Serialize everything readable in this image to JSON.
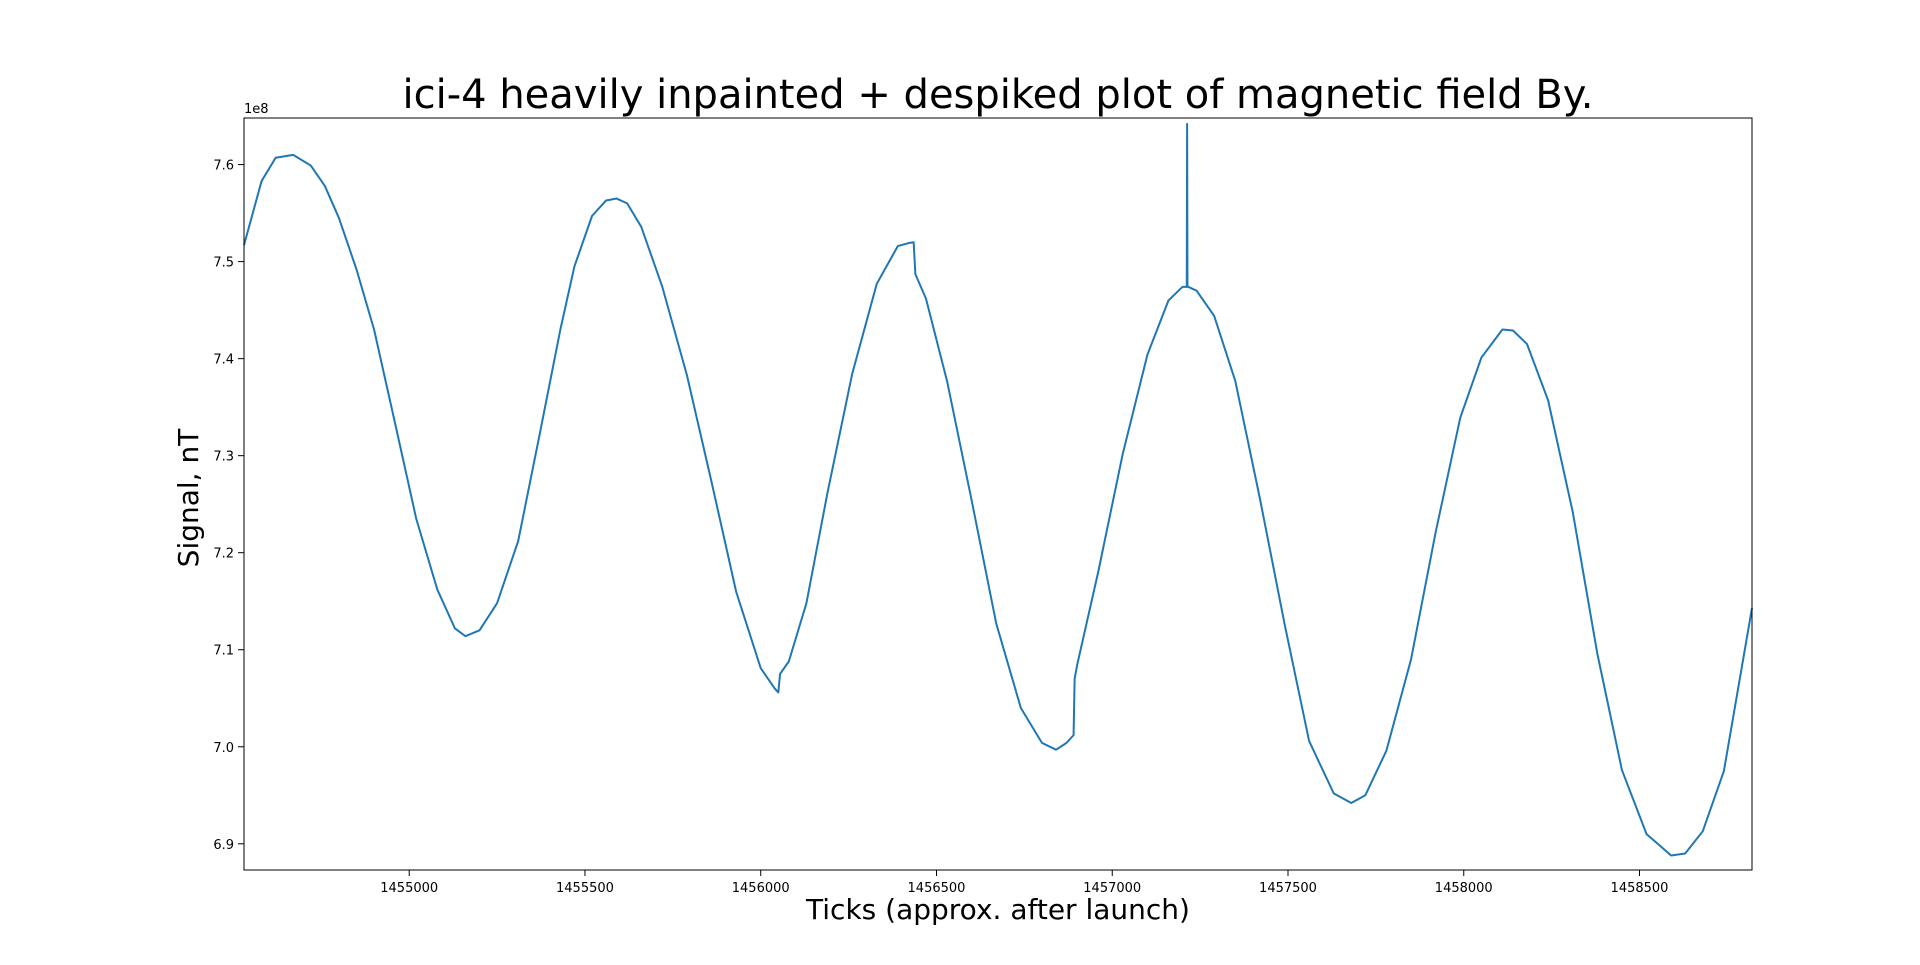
{
  "chart_data": {
    "type": "line",
    "title": "ici-4 heavily inpainted + despiked plot of magnetic field By.",
    "xlabel": "Ticks (approx. after launch)",
    "ylabel": "Signal, nT",
    "y_offset_label": "1e8",
    "xlim": [
      1454530,
      1458820
    ],
    "ylim": [
      6.873,
      7.648
    ],
    "x_ticks": [
      1455000,
      1455500,
      1456000,
      1456500,
      1457000,
      1457500,
      1458000,
      1458500
    ],
    "x_tick_labels": [
      "1455000",
      "1455500",
      "1456000",
      "1456500",
      "1457000",
      "1457500",
      "1458000",
      "1458500"
    ],
    "y_ticks": [
      6.9,
      7.0,
      7.1,
      7.2,
      7.3,
      7.4,
      7.5,
      7.6
    ],
    "y_tick_labels": [
      "6.9",
      "7.0",
      "7.1",
      "7.2",
      "7.3",
      "7.4",
      "7.5",
      "7.6"
    ],
    "grid": false,
    "line_color": "#1f77b4",
    "series": [
      {
        "x": [
          1454530,
          1454580,
          1454620,
          1454670,
          1454720,
          1454760,
          1454800,
          1454850,
          1454900,
          1454960,
          1455020,
          1455080,
          1455130,
          1455160,
          1455200,
          1455250,
          1455310,
          1455370,
          1455430,
          1455470,
          1455520,
          1455560,
          1455590,
          1455620,
          1455660,
          1455720,
          1455790,
          1455860,
          1455930,
          1456000,
          1456040,
          1456050,
          1456055,
          1456080,
          1456130,
          1456190,
          1456260,
          1456330,
          1456390,
          1456420,
          1456435,
          1456440,
          1456470,
          1456530,
          1456600,
          1456670,
          1456740,
          1456800,
          1456840,
          1456870,
          1456890,
          1456893,
          1456900,
          1456960,
          1457030,
          1457100,
          1457160,
          1457200,
          1457212,
          1457213,
          1457214,
          1457216,
          1457240,
          1457290,
          1457350,
          1457420,
          1457490,
          1457560,
          1457630,
          1457680,
          1457720,
          1457780,
          1457850,
          1457920,
          1457990,
          1458050,
          1458110,
          1458140,
          1458180,
          1458240,
          1458310,
          1458380,
          1458450,
          1458520,
          1458590,
          1458630,
          1458680,
          1458740,
          1458820
        ],
        "y": [
          7.517,
          7.583,
          7.607,
          7.61,
          7.599,
          7.578,
          7.545,
          7.492,
          7.43,
          7.333,
          7.235,
          7.162,
          7.122,
          7.114,
          7.12,
          7.148,
          7.212,
          7.32,
          7.43,
          7.495,
          7.547,
          7.563,
          7.565,
          7.56,
          7.536,
          7.474,
          7.383,
          7.273,
          7.16,
          7.081,
          7.06,
          7.056,
          7.075,
          7.088,
          7.148,
          7.262,
          7.384,
          7.477,
          7.516,
          7.519,
          7.52,
          7.487,
          7.462,
          7.377,
          7.254,
          7.127,
          7.04,
          7.004,
          6.997,
          7.004,
          7.012,
          7.07,
          7.084,
          7.18,
          7.302,
          7.404,
          7.46,
          7.474,
          7.474,
          7.642,
          7.474,
          7.474,
          7.47,
          7.444,
          7.377,
          7.256,
          7.127,
          7.006,
          6.952,
          6.942,
          6.95,
          6.996,
          7.09,
          7.221,
          7.339,
          7.401,
          7.43,
          7.429,
          7.415,
          7.357,
          7.242,
          7.096,
          6.976,
          6.91,
          6.888,
          6.89,
          6.913,
          6.975,
          7.143
        ]
      }
    ]
  }
}
